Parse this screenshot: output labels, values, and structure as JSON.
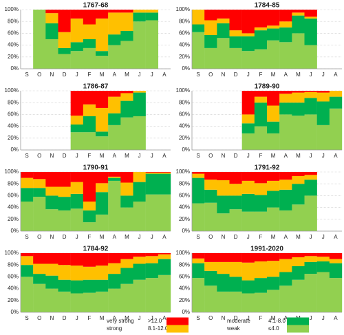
{
  "chart_data": [
    {
      "type": "bar",
      "title": "1767-68",
      "categories": [
        "S",
        "O",
        "N",
        "D",
        "J",
        "F",
        "M",
        "A",
        "M",
        "J",
        "J",
        "A"
      ],
      "series": [
        {
          "name": "weak",
          "color": "#92d050",
          "values": [
            null,
            100,
            50,
            25,
            30,
            35,
            22,
            40,
            47,
            80,
            82,
            null
          ]
        },
        {
          "name": "moderate",
          "color": "#00b050",
          "values": [
            null,
            0,
            27,
            10,
            15,
            15,
            8,
            18,
            17,
            15,
            13,
            null
          ]
        },
        {
          "name": "strong",
          "color": "#ffc000",
          "values": [
            null,
            0,
            17,
            27,
            40,
            25,
            55,
            37,
            31,
            5,
            5,
            null
          ]
        },
        {
          "name": "very strong",
          "color": "#ff0000",
          "values": [
            null,
            0,
            6,
            38,
            15,
            25,
            15,
            5,
            5,
            0,
            0,
            null
          ]
        }
      ],
      "ylim": [
        0,
        100
      ],
      "yticks": [
        {
          "value": 0,
          "label": "0%"
        },
        {
          "value": 20,
          "label": "20%"
        },
        {
          "value": 40,
          "label": "40%"
        },
        {
          "value": 60,
          "label": "60%"
        },
        {
          "value": 80,
          "label": "80%"
        },
        {
          "value": 100,
          "label": "100%"
        }
      ],
      "grid": true
    },
    {
      "type": "bar",
      "title": "1784-85",
      "categories": [
        "S",
        "O",
        "N",
        "D",
        "J",
        "F",
        "M",
        "A",
        "M",
        "J",
        "J",
        "A"
      ],
      "series": [
        {
          "name": "weak",
          "color": "#92d050",
          "values": [
            62,
            35,
            52,
            35,
            30,
            33,
            48,
            45,
            60,
            40,
            null,
            null
          ]
        },
        {
          "name": "moderate",
          "color": "#00b050",
          "values": [
            13,
            22,
            25,
            20,
            25,
            32,
            20,
            25,
            30,
            45,
            null,
            null
          ]
        },
        {
          "name": "strong",
          "color": "#ffc000",
          "values": [
            25,
            25,
            8,
            10,
            5,
            5,
            5,
            10,
            5,
            3,
            null,
            null
          ]
        },
        {
          "name": "very strong",
          "color": "#ff0000",
          "values": [
            0,
            18,
            15,
            35,
            40,
            30,
            27,
            20,
            5,
            12,
            null,
            null
          ]
        }
      ],
      "ylim": [
        0,
        100
      ],
      "yticks": [
        {
          "value": 0,
          "label": "0%"
        },
        {
          "value": 20,
          "label": "20%"
        },
        {
          "value": 40,
          "label": "40%"
        },
        {
          "value": 60,
          "label": "60%"
        },
        {
          "value": 80,
          "label": "80%"
        },
        {
          "value": 100,
          "label": "100%"
        }
      ],
      "grid": true
    },
    {
      "type": "bar",
      "title": "1786-87",
      "categories": [
        "S",
        "O",
        "N",
        "D",
        "J",
        "F",
        "M",
        "A",
        "M",
        "J",
        "J",
        "A"
      ],
      "series": [
        {
          "name": "weak",
          "color": "#92d050",
          "values": [
            null,
            null,
            null,
            null,
            30,
            30,
            23,
            42,
            55,
            57,
            null,
            null
          ]
        },
        {
          "name": "moderate",
          "color": "#00b050",
          "values": [
            null,
            null,
            null,
            null,
            13,
            27,
            8,
            20,
            28,
            40,
            null,
            null
          ]
        },
        {
          "name": "strong",
          "color": "#ffc000",
          "values": [
            null,
            null,
            null,
            null,
            15,
            20,
            40,
            28,
            13,
            3,
            null,
            null
          ]
        },
        {
          "name": "very strong",
          "color": "#ff0000",
          "values": [
            null,
            null,
            null,
            null,
            42,
            23,
            29,
            10,
            4,
            0,
            null,
            null
          ]
        }
      ],
      "ylim": [
        0,
        100
      ],
      "yticks": [
        {
          "value": 0,
          "label": "0%"
        },
        {
          "value": 20,
          "label": "20%"
        },
        {
          "value": 40,
          "label": "40%"
        },
        {
          "value": 60,
          "label": "60%"
        },
        {
          "value": 80,
          "label": "80%"
        },
        {
          "value": 100,
          "label": "100%"
        }
      ],
      "grid": true
    },
    {
      "type": "bar",
      "title": "1789-90",
      "categories": [
        "S",
        "O",
        "N",
        "D",
        "J",
        "F",
        "M",
        "A",
        "M",
        "J",
        "J",
        "A"
      ],
      "series": [
        {
          "name": "weak",
          "color": "#92d050",
          "values": [
            null,
            null,
            null,
            null,
            28,
            40,
            28,
            60,
            58,
            60,
            42,
            70
          ]
        },
        {
          "name": "moderate",
          "color": "#00b050",
          "values": [
            null,
            null,
            null,
            null,
            17,
            40,
            20,
            20,
            22,
            28,
            40,
            20
          ]
        },
        {
          "name": "strong",
          "color": "#ffc000",
          "values": [
            null,
            null,
            null,
            null,
            15,
            10,
            27,
            15,
            17,
            10,
            15,
            10
          ]
        },
        {
          "name": "very strong",
          "color": "#ff0000",
          "values": [
            null,
            null,
            null,
            null,
            40,
            10,
            25,
            5,
            3,
            2,
            3,
            0
          ]
        }
      ],
      "ylim": [
        0,
        100
      ],
      "yticks": [
        {
          "value": 0,
          "label": "0%"
        },
        {
          "value": 20,
          "label": "20%"
        },
        {
          "value": 40,
          "label": "40%"
        },
        {
          "value": 60,
          "label": "60%"
        },
        {
          "value": 80,
          "label": "80%"
        },
        {
          "value": 100,
          "label": "100%"
        }
      ],
      "grid": true
    },
    {
      "type": "bar",
      "title": "1790-91",
      "categories": [
        "S",
        "O",
        "N",
        "D",
        "J",
        "F",
        "M",
        "A",
        "M",
        "J",
        "J",
        "A"
      ],
      "series": [
        {
          "name": "weak",
          "color": "#92d050",
          "values": [
            50,
            58,
            37,
            35,
            38,
            15,
            28,
            85,
            40,
            50,
            62,
            62
          ]
        },
        {
          "name": "moderate",
          "color": "#00b050",
          "values": [
            23,
            15,
            23,
            23,
            25,
            20,
            38,
            5,
            20,
            33,
            35,
            35
          ]
        },
        {
          "name": "strong",
          "color": "#ffc000",
          "values": [
            17,
            15,
            15,
            17,
            20,
            15,
            15,
            2,
            22,
            17,
            2,
            2
          ]
        },
        {
          "name": "very strong",
          "color": "#ff0000",
          "values": [
            10,
            12,
            25,
            25,
            17,
            50,
            19,
            8,
            18,
            0,
            1,
            1
          ]
        }
      ],
      "ylim": [
        0,
        100
      ],
      "yticks": [
        {
          "value": 0,
          "label": "0%"
        },
        {
          "value": 20,
          "label": "20%"
        },
        {
          "value": 40,
          "label": "40%"
        },
        {
          "value": 60,
          "label": "60%"
        },
        {
          "value": 80,
          "label": "80%"
        },
        {
          "value": 100,
          "label": "100%"
        }
      ],
      "grid": true
    },
    {
      "type": "bar",
      "title": "1791-92",
      "categories": [
        "S",
        "O",
        "N",
        "D",
        "J",
        "F",
        "M",
        "A",
        "M",
        "J",
        "J",
        "A"
      ],
      "series": [
        {
          "name": "weak",
          "color": "#92d050",
          "values": [
            47,
            48,
            30,
            37,
            33,
            33,
            40,
            35,
            45,
            60,
            null,
            null
          ]
        },
        {
          "name": "moderate",
          "color": "#00b050",
          "values": [
            43,
            22,
            30,
            23,
            30,
            28,
            28,
            35,
            35,
            27,
            null,
            null
          ]
        },
        {
          "name": "strong",
          "color": "#ffc000",
          "values": [
            7,
            17,
            26,
            20,
            22,
            20,
            17,
            17,
            13,
            8,
            null,
            null
          ]
        },
        {
          "name": "very strong",
          "color": "#ff0000",
          "values": [
            3,
            13,
            14,
            20,
            15,
            19,
            15,
            13,
            7,
            5,
            null,
            null
          ]
        }
      ],
      "ylim": [
        0,
        100
      ],
      "yticks": [
        {
          "value": 0,
          "label": "0%"
        },
        {
          "value": 20,
          "label": "20%"
        },
        {
          "value": 40,
          "label": "40%"
        },
        {
          "value": 60,
          "label": "60%"
        },
        {
          "value": 80,
          "label": "80%"
        },
        {
          "value": 100,
          "label": "100%"
        }
      ],
      "grid": true
    },
    {
      "type": "bar",
      "title": "1784-92",
      "categories": [
        "S",
        "O",
        "N",
        "D",
        "J",
        "F",
        "M",
        "A",
        "M",
        "J",
        "J",
        "A"
      ],
      "series": [
        {
          "name": "weak",
          "color": "#92d050",
          "values": [
            60,
            48,
            40,
            35,
            32,
            33,
            35,
            40,
            48,
            55,
            58,
            63
          ]
        },
        {
          "name": "moderate",
          "color": "#00b050",
          "values": [
            20,
            17,
            22,
            20,
            22,
            22,
            20,
            25,
            27,
            27,
            25,
            27
          ]
        },
        {
          "name": "strong",
          "color": "#ffc000",
          "values": [
            15,
            17,
            20,
            25,
            25,
            22,
            24,
            18,
            15,
            12,
            12,
            8
          ]
        },
        {
          "name": "very strong",
          "color": "#ff0000",
          "values": [
            5,
            18,
            18,
            20,
            21,
            23,
            21,
            17,
            10,
            6,
            5,
            2
          ]
        }
      ],
      "ylim": [
        0,
        100
      ],
      "yticks": [
        {
          "value": 0,
          "label": "0%"
        },
        {
          "value": 20,
          "label": "20%"
        },
        {
          "value": 40,
          "label": "40%"
        },
        {
          "value": 60,
          "label": "60%"
        },
        {
          "value": 80,
          "label": "80%"
        },
        {
          "value": 100,
          "label": "100%"
        }
      ],
      "grid": true
    },
    {
      "type": "bar",
      "title": "1991-2020",
      "categories": [
        "S",
        "O",
        "N",
        "D",
        "J",
        "F",
        "M",
        "A",
        "M",
        "J",
        "J",
        "A"
      ],
      "series": [
        {
          "name": "weak",
          "color": "#92d050",
          "values": [
            58,
            45,
            35,
            35,
            32,
            33,
            38,
            45,
            55,
            65,
            68,
            58
          ]
        },
        {
          "name": "moderate",
          "color": "#00b050",
          "values": [
            25,
            25,
            30,
            25,
            22,
            25,
            22,
            23,
            23,
            20,
            18,
            25
          ]
        },
        {
          "name": "strong",
          "color": "#ffc000",
          "values": [
            8,
            15,
            20,
            25,
            30,
            28,
            27,
            22,
            15,
            10,
            8,
            7
          ]
        },
        {
          "name": "very strong",
          "color": "#ff0000",
          "values": [
            9,
            15,
            15,
            15,
            16,
            14,
            13,
            10,
            7,
            5,
            6,
            10
          ]
        }
      ],
      "ylim": [
        0,
        100
      ],
      "yticks": [
        {
          "value": 0,
          "label": "0%"
        },
        {
          "value": 20,
          "label": "20%"
        },
        {
          "value": 40,
          "label": "40%"
        },
        {
          "value": 60,
          "label": "60%"
        },
        {
          "value": 80,
          "label": "80%"
        },
        {
          "value": 100,
          "label": "100%"
        }
      ],
      "grid": true
    }
  ],
  "legend_ranges": [
    "≤4.0",
    "4.1-8.0",
    "8.1-12.0",
    ">12.0"
  ]
}
